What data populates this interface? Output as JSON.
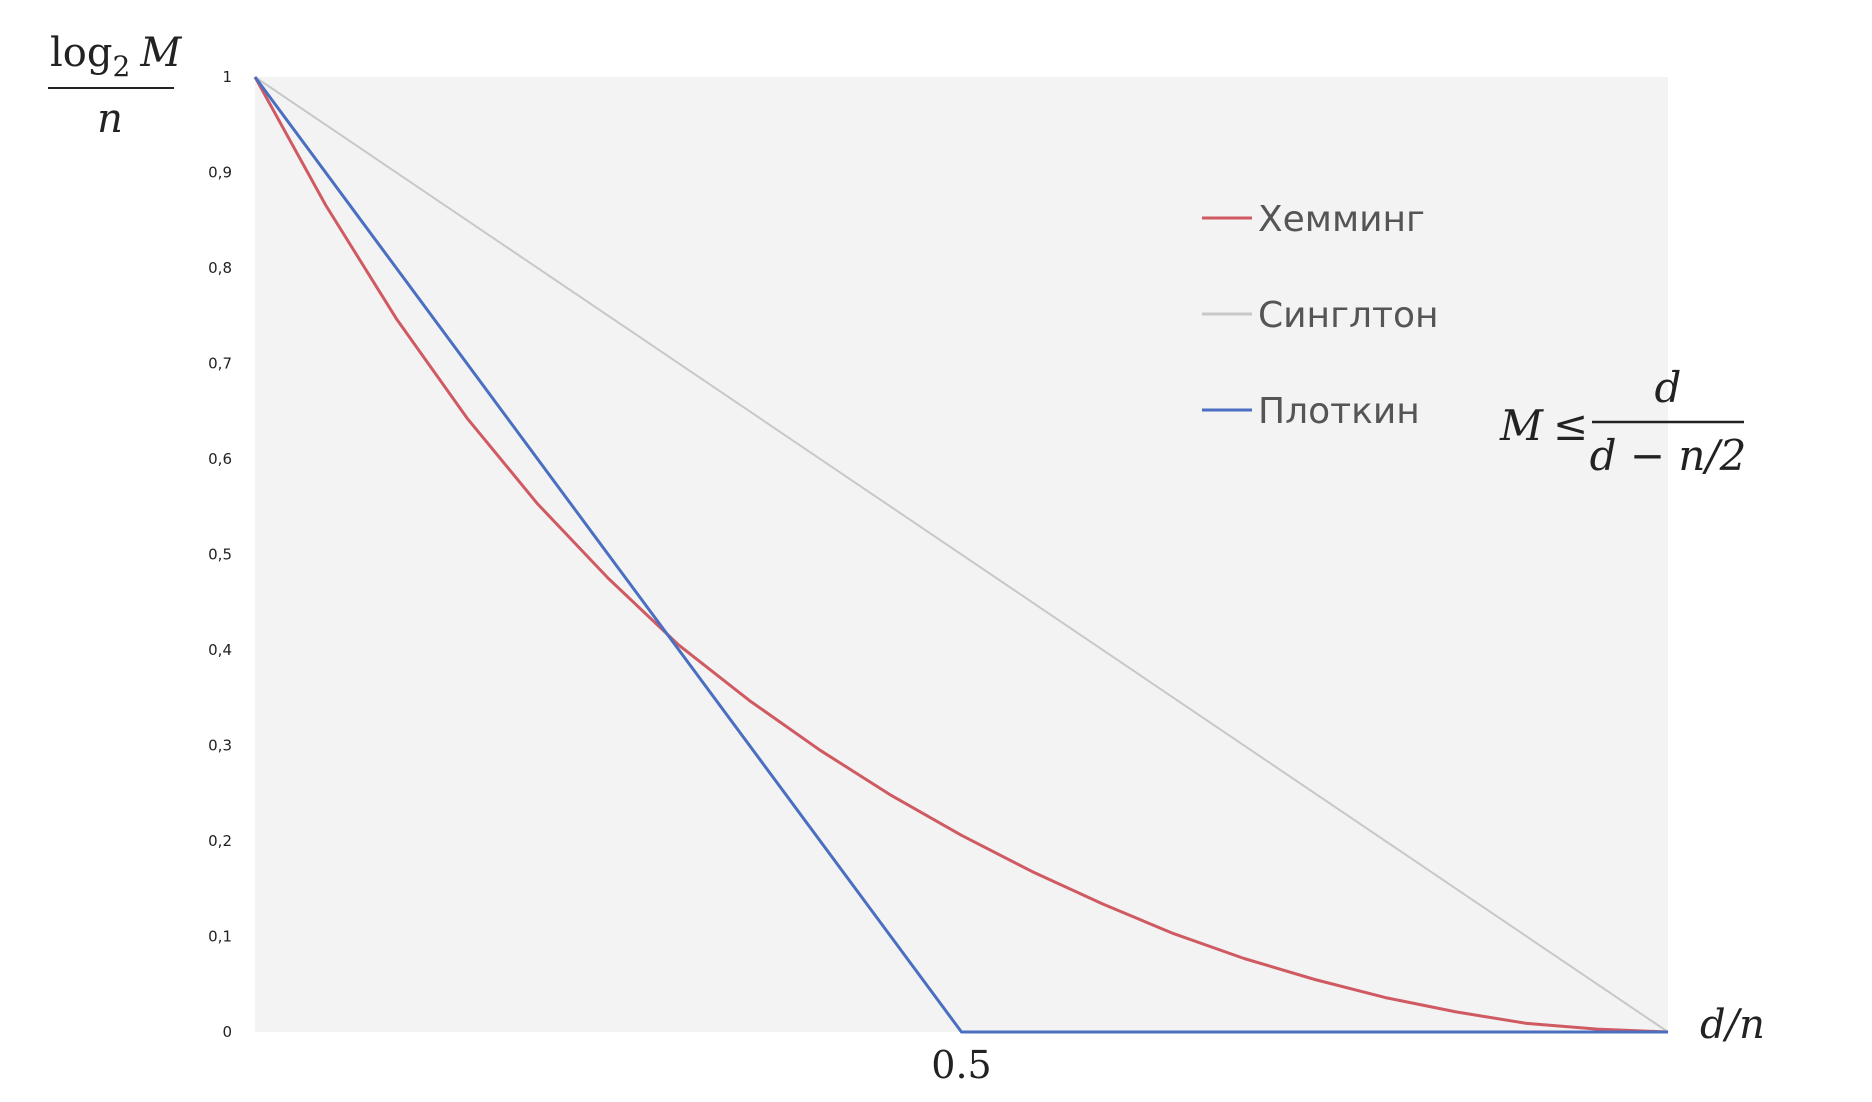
{
  "chart_data": {
    "type": "line",
    "xlim": [
      0,
      1
    ],
    "ylim": [
      0,
      1
    ],
    "y_ticks": [
      "0",
      "0,1",
      "0,2",
      "0,3",
      "0,4",
      "0,5",
      "0,6",
      "0,7",
      "0,8",
      "0,9",
      "1"
    ],
    "x_ticks": [
      {
        "value": 0.5,
        "label": "0.5"
      }
    ],
    "xlabel": {
      "num": "d",
      "sep": "/",
      "den": "n"
    },
    "ylabel": {
      "func": "log",
      "sub": "2",
      "var": "M",
      "den": "n"
    },
    "grid": false,
    "plot_background": "#f3f3f3",
    "legend_position": "top-right",
    "series": [
      {
        "name": "Хемминг",
        "color": "#d05a62",
        "x": [
          0,
          0.05,
          0.1,
          0.15,
          0.2,
          0.25,
          0.3,
          0.35,
          0.4,
          0.45,
          0.5,
          0.55,
          0.6,
          0.65,
          0.7,
          0.75,
          0.8,
          0.85,
          0.9,
          0.95,
          1.0
        ],
        "y": [
          1.0,
          0.866,
          0.747,
          0.643,
          0.553,
          0.475,
          0.405,
          0.347,
          0.295,
          0.248,
          0.206,
          0.168,
          0.134,
          0.103,
          0.077,
          0.055,
          0.036,
          0.021,
          0.009,
          0.003,
          0.0
        ]
      },
      {
        "name": "Синглтон",
        "color": "#c8c8c8",
        "x": [
          0,
          1
        ],
        "y": [
          1,
          0
        ]
      },
      {
        "name": "Плоткин",
        "color": "#4a6fc0",
        "x": [
          0,
          0.5,
          1
        ],
        "y": [
          1,
          0,
          0
        ]
      }
    ],
    "annotation": {
      "lhs": "M",
      "rel": "≤",
      "num": "d",
      "den": "d − n/2"
    }
  }
}
